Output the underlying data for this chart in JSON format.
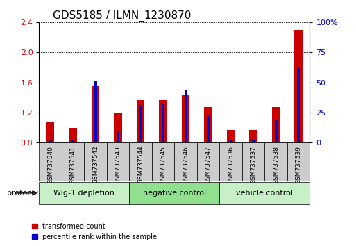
{
  "title": "GDS5185 / ILMN_1230870",
  "samples": [
    "GSM737540",
    "GSM737541",
    "GSM737542",
    "GSM737543",
    "GSM737544",
    "GSM737545",
    "GSM737546",
    "GSM737547",
    "GSM737536",
    "GSM737537",
    "GSM737538",
    "GSM737539"
  ],
  "red_values": [
    1.08,
    1.0,
    1.55,
    1.19,
    1.37,
    1.37,
    1.43,
    1.27,
    0.97,
    0.97,
    1.27,
    2.3
  ],
  "blue_values": [
    2.5,
    2.5,
    51,
    10,
    30,
    32,
    44,
    22,
    2,
    2,
    19,
    62
  ],
  "ylim_left": [
    0.8,
    2.4
  ],
  "ylim_right": [
    0,
    100
  ],
  "yticks_left": [
    0.8,
    1.2,
    1.6,
    2.0,
    2.4
  ],
  "yticks_right": [
    0,
    25,
    50,
    75,
    100
  ],
  "groups": [
    {
      "label": "Wig-1 depletion",
      "start": 0,
      "end": 3
    },
    {
      "label": "negative control",
      "start": 4,
      "end": 7
    },
    {
      "label": "vehicle control",
      "start": 8,
      "end": 11
    }
  ],
  "group_colors_list": [
    "#c8f0c8",
    "#90e090",
    "#c8f0c8"
  ],
  "bar_color_red": "#cc0000",
  "bar_color_blue": "#0000cc",
  "red_bar_width": 0.35,
  "blue_bar_width": 0.12,
  "protocol_label": "protocol",
  "legend_red": "transformed count",
  "legend_blue": "percentile rank within the sample",
  "sample_bg_color": "#cccccc",
  "title_fontsize": 11,
  "tick_fontsize": 8,
  "label_fontsize": 8,
  "group_fontsize": 8,
  "sample_fontsize": 6.5
}
